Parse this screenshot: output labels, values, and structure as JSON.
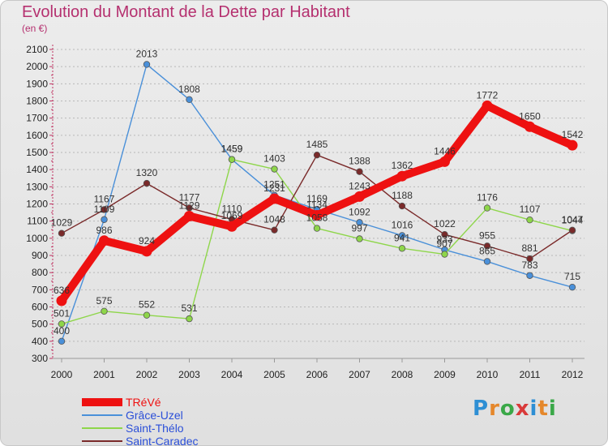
{
  "header": {
    "title": "Evolution du Montant de la Dette par Habitant",
    "unit": "(en €)"
  },
  "logo": {
    "text": "Proxiti",
    "letter_colors": [
      "#2e8fd4",
      "#e5872b",
      "#3aa848",
      "#d93a3a",
      "#2e8fd4",
      "#e5872b",
      "#3aa848"
    ]
  },
  "chart_data": {
    "type": "line",
    "title": "Evolution du Montant de la Dette par Habitant",
    "ylabel": "(en €)",
    "xlabel": "",
    "x": [
      2000,
      2001,
      2002,
      2003,
      2004,
      2005,
      2006,
      2007,
      2008,
      2009,
      2010,
      2011,
      2012
    ],
    "ylim": [
      300,
      2100
    ],
    "yticks": [
      300,
      400,
      500,
      600,
      700,
      800,
      900,
      1000,
      1100,
      1200,
      1300,
      1400,
      1500,
      1600,
      1700,
      1800,
      1900,
      2000,
      2100
    ],
    "grid": "horizontal dashed",
    "legend": "bottom-left",
    "series": [
      {
        "name": "TRéVé",
        "color": "#ee1111",
        "emphasis": true,
        "values": [
          636,
          986,
          924,
          1129,
          1069,
          1231,
          1134,
          1243,
          1362,
          1446,
          1772,
          1650,
          1542
        ]
      },
      {
        "name": "Grâce-Uzel",
        "color": "#4a90d9",
        "emphasis": false,
        "values": [
          400,
          1109,
          2013,
          1808,
          1459,
          1251,
          1169,
          1092,
          1016,
          933,
          865,
          783,
          715
        ]
      },
      {
        "name": "Saint-Thélo",
        "color": "#8ed64a",
        "emphasis": false,
        "values": [
          501,
          575,
          552,
          531,
          1459,
          1403,
          1058,
          997,
          941,
          907,
          1176,
          1107,
          1044
        ]
      },
      {
        "name": "Saint-Caradec",
        "color": "#7a2a2a",
        "emphasis": false,
        "values": [
          1029,
          1167,
          1320,
          1177,
          1110,
          1048,
          1485,
          1388,
          1188,
          1022,
          955,
          881,
          1047
        ]
      }
    ]
  }
}
